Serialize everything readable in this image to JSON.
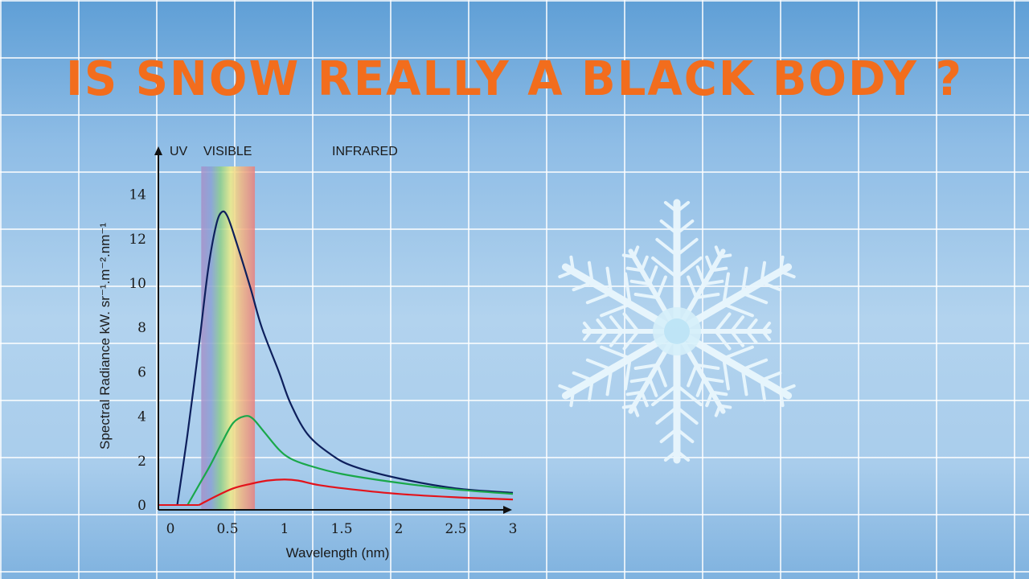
{
  "title": "IS SNOW REALLY A BLACK BODY ?",
  "colors": {
    "title": "#f26d1d",
    "series_hot": "#0d1f5c",
    "series_mid": "#1aa84a",
    "series_cool": "#e3131b"
  },
  "snowflake": {
    "icon": "snowflake-icon"
  },
  "chart_data": {
    "type": "line",
    "xlabel": "Wavelength (nm)",
    "ylabel": "Spectral Radiance kW. sr⁻¹.m⁻².nm⁻¹",
    "xlim": [
      0,
      3
    ],
    "ylim": [
      0,
      15
    ],
    "x_ticks": [
      "0",
      "0.5",
      "1",
      "1.5",
      "2",
      "2.5",
      "3"
    ],
    "y_ticks": [
      "0",
      "2",
      "4",
      "6",
      "8",
      "10",
      "12",
      "14"
    ],
    "bands": {
      "uv": "UV",
      "visible": "VISIBLE",
      "infrared": "INFRARED",
      "visible_range": [
        0.27,
        0.74
      ]
    },
    "grid": false,
    "legend": "none",
    "series": [
      {
        "color": "#0d1f5c",
        "points": [
          [
            0.06,
            0
          ],
          [
            0.15,
            3.2
          ],
          [
            0.25,
            7.2
          ],
          [
            0.33,
            10.6
          ],
          [
            0.4,
            12.6
          ],
          [
            0.45,
            13.2
          ],
          [
            0.5,
            13.0
          ],
          [
            0.58,
            11.8
          ],
          [
            0.7,
            9.8
          ],
          [
            0.8,
            8.0
          ],
          [
            0.95,
            6.0
          ],
          [
            1.05,
            4.6
          ],
          [
            1.2,
            3.2
          ],
          [
            1.4,
            2.3
          ],
          [
            1.6,
            1.75
          ],
          [
            2.0,
            1.2
          ],
          [
            2.5,
            0.75
          ],
          [
            3.0,
            0.55
          ]
        ]
      },
      {
        "color": "#1aa84a",
        "points": [
          [
            0.15,
            0
          ],
          [
            0.25,
            0.9
          ],
          [
            0.35,
            1.8
          ],
          [
            0.45,
            2.8
          ],
          [
            0.55,
            3.7
          ],
          [
            0.65,
            4.0
          ],
          [
            0.72,
            3.9
          ],
          [
            0.82,
            3.3
          ],
          [
            0.95,
            2.5
          ],
          [
            1.05,
            2.1
          ],
          [
            1.2,
            1.8
          ],
          [
            1.5,
            1.4
          ],
          [
            2.0,
            1.0
          ],
          [
            2.5,
            0.7
          ],
          [
            3.0,
            0.5
          ]
        ]
      },
      {
        "color": "#e3131b",
        "points": [
          [
            0.25,
            0
          ],
          [
            0.4,
            0.4
          ],
          [
            0.55,
            0.75
          ],
          [
            0.7,
            0.95
          ],
          [
            0.85,
            1.1
          ],
          [
            1.0,
            1.15
          ],
          [
            1.12,
            1.1
          ],
          [
            1.3,
            0.9
          ],
          [
            1.6,
            0.7
          ],
          [
            2.0,
            0.5
          ],
          [
            2.5,
            0.35
          ],
          [
            3.0,
            0.25
          ]
        ]
      }
    ]
  }
}
